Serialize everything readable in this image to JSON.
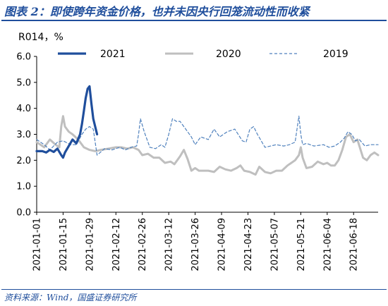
{
  "figure_title": "图表 2：即使跨年资金价格，也并未因央行回笼流动性而收紧",
  "source": "资料来源：Wind，国盛证券研究所",
  "colors": {
    "title": "#1f4e9c",
    "s2021": "#1f4e9c",
    "s2020": "#bfbfbf",
    "s2019": "#4f81bd"
  },
  "chart_data": {
    "type": "line",
    "ylabel": "R014，%",
    "ylim": [
      0,
      6
    ],
    "yticks": [
      "0.0",
      "1.0",
      "2.0",
      "3.0",
      "4.0",
      "5.0",
      "6.0"
    ],
    "xlim": [
      "2021-01-01",
      "2021-07-01"
    ],
    "xticks": [
      "2021-01-01",
      "2021-01-15",
      "2021-01-29",
      "2021-02-12",
      "2021-02-26",
      "2021-03-12",
      "2021-03-26",
      "2021-04-09",
      "2021-04-23",
      "2021-05-07",
      "2021-05-21",
      "2021-06-04",
      "2021-06-18"
    ],
    "legend": "top",
    "grid": false,
    "series": [
      {
        "name": "2021",
        "x": [
          "2021-01-01",
          "2021-01-04",
          "2021-01-06",
          "2021-01-08",
          "2021-01-10",
          "2021-01-12",
          "2021-01-14",
          "2021-01-15",
          "2021-01-16",
          "2021-01-18",
          "2021-01-20",
          "2021-01-22",
          "2021-01-24",
          "2021-01-25",
          "2021-01-26",
          "2021-01-27",
          "2021-01-28",
          "2021-01-29",
          "2021-01-30",
          "2021-01-31",
          "2021-02-02"
        ],
        "values": [
          2.35,
          2.35,
          2.3,
          2.4,
          2.32,
          2.45,
          2.2,
          2.1,
          2.3,
          2.55,
          2.8,
          2.65,
          3.0,
          3.4,
          3.9,
          4.4,
          4.75,
          4.85,
          4.2,
          3.6,
          3.0
        ]
      },
      {
        "name": "2020",
        "x": [
          "2021-01-01",
          "2021-01-05",
          "2021-01-08",
          "2021-01-11",
          "2021-01-13",
          "2021-01-14",
          "2021-01-15",
          "2021-01-16",
          "2021-01-18",
          "2021-01-20",
          "2021-01-23",
          "2021-01-26",
          "2021-01-29",
          "2021-02-01",
          "2021-02-04",
          "2021-02-08",
          "2021-02-12",
          "2021-02-15",
          "2021-02-18",
          "2021-02-21",
          "2021-02-24",
          "2021-02-26",
          "2021-03-01",
          "2021-03-04",
          "2021-03-07",
          "2021-03-10",
          "2021-03-13",
          "2021-03-15",
          "2021-03-18",
          "2021-03-20",
          "2021-03-22",
          "2021-03-24",
          "2021-03-26",
          "2021-03-28",
          "2021-03-30",
          "2021-04-02",
          "2021-04-05",
          "2021-04-08",
          "2021-04-11",
          "2021-04-14",
          "2021-04-17",
          "2021-04-19",
          "2021-04-21",
          "2021-04-24",
          "2021-04-27",
          "2021-04-29",
          "2021-05-02",
          "2021-05-05",
          "2021-05-08",
          "2021-05-11",
          "2021-05-14",
          "2021-05-16",
          "2021-05-18",
          "2021-05-20",
          "2021-05-21",
          "2021-05-22",
          "2021-05-24",
          "2021-05-27",
          "2021-05-30",
          "2021-06-02",
          "2021-06-04",
          "2021-06-06",
          "2021-06-08",
          "2021-06-10",
          "2021-06-12",
          "2021-06-14",
          "2021-06-16",
          "2021-06-18",
          "2021-06-20",
          "2021-06-23",
          "2021-06-25",
          "2021-06-27",
          "2021-06-29",
          "2021-07-01"
        ],
        "values": [
          2.7,
          2.5,
          2.8,
          2.6,
          2.5,
          3.3,
          3.7,
          3.3,
          3.1,
          3.0,
          2.8,
          2.5,
          2.4,
          2.35,
          2.4,
          2.45,
          2.5,
          2.5,
          2.45,
          2.5,
          2.4,
          2.2,
          2.25,
          2.1,
          2.1,
          1.9,
          1.95,
          1.85,
          2.15,
          2.4,
          2.05,
          1.6,
          1.7,
          1.6,
          1.6,
          1.6,
          1.55,
          1.75,
          1.65,
          1.6,
          1.7,
          1.8,
          1.6,
          1.55,
          1.45,
          1.75,
          1.55,
          1.5,
          1.6,
          1.6,
          1.8,
          1.9,
          2.0,
          2.2,
          2.5,
          2.1,
          1.7,
          1.75,
          1.95,
          1.85,
          1.9,
          1.8,
          1.8,
          2.0,
          2.4,
          2.9,
          3.0,
          2.7,
          2.8,
          2.1,
          2.0,
          2.2,
          2.3,
          2.2
        ]
      },
      {
        "name": "2019",
        "x": [
          "2021-01-01",
          "2021-01-05",
          "2021-01-08",
          "2021-01-12",
          "2021-01-15",
          "2021-01-19",
          "2021-01-22",
          "2021-01-25",
          "2021-01-27",
          "2021-01-29",
          "2021-01-31",
          "2021-02-02",
          "2021-02-06",
          "2021-02-10",
          "2021-02-14",
          "2021-02-17",
          "2021-02-20",
          "2021-02-23",
          "2021-02-24",
          "2021-02-25",
          "2021-02-27",
          "2021-03-02",
          "2021-03-05",
          "2021-03-08",
          "2021-03-10",
          "2021-03-12",
          "2021-03-14",
          "2021-03-16",
          "2021-03-18",
          "2021-03-22",
          "2021-03-24",
          "2021-03-26",
          "2021-03-29",
          "2021-04-02",
          "2021-04-05",
          "2021-04-08",
          "2021-04-12",
          "2021-04-16",
          "2021-04-20",
          "2021-04-22",
          "2021-04-24",
          "2021-04-26",
          "2021-04-28",
          "2021-05-02",
          "2021-05-05",
          "2021-05-08",
          "2021-05-12",
          "2021-05-15",
          "2021-05-18",
          "2021-05-20",
          "2021-05-21",
          "2021-05-22",
          "2021-05-24",
          "2021-05-28",
          "2021-06-02",
          "2021-06-05",
          "2021-06-08",
          "2021-06-11",
          "2021-06-13",
          "2021-06-15",
          "2021-06-17",
          "2021-06-19",
          "2021-06-21",
          "2021-06-24",
          "2021-06-27",
          "2021-07-01"
        ],
        "values": [
          2.8,
          2.6,
          2.4,
          2.7,
          2.75,
          2.6,
          2.6,
          3.0,
          3.2,
          3.3,
          3.2,
          2.2,
          2.45,
          2.4,
          2.5,
          2.4,
          2.5,
          2.55,
          3.0,
          3.6,
          3.1,
          2.5,
          2.45,
          2.6,
          2.5,
          3.0,
          3.6,
          3.5,
          3.5,
          3.1,
          2.9,
          2.6,
          2.9,
          2.8,
          3.2,
          2.9,
          3.1,
          3.2,
          2.75,
          2.7,
          3.2,
          3.3,
          3.0,
          2.5,
          2.55,
          2.6,
          2.55,
          2.6,
          2.7,
          3.7,
          3.0,
          2.6,
          2.65,
          2.55,
          2.6,
          2.5,
          2.55,
          2.7,
          2.85,
          3.1,
          3.0,
          2.75,
          2.8,
          2.55,
          2.6,
          2.6
        ]
      }
    ]
  }
}
